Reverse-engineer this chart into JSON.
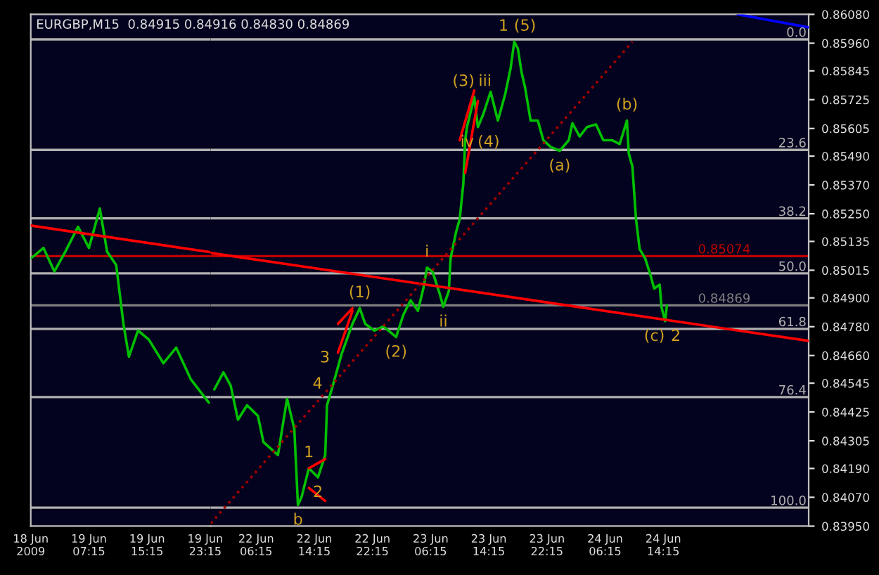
{
  "chart_data": [
    {
      "type": "line",
      "title": "EURGBP,M15  0.84915 0.84916 0.84830 0.84869",
      "xlim": [
        "2009-06-18T23:15",
        "2009-06-20T00:00"
      ],
      "ylim": [
        0.8395,
        0.8608
      ],
      "tick_labels": "x",
      "xticks": [
        {
          "value": "2009-06-18T23:15",
          "label": "18 Jun 2009"
        },
        {
          "value": "2009-06-19T07:15",
          "label": "19 Jun 07:15"
        },
        {
          "value": "2009-06-19T15:15",
          "label": "19 Jun 15:15"
        },
        {
          "value": "2009-06-19T23:15",
          "label": "19 Jun 23:15"
        }
      ],
      "grid": false,
      "legend": false,
      "series": [
        {
          "color": "#00c000",
          "x": [
            "2009-06-18T23:15",
            "2009-06-18T23:45",
            "2009-06-19T01:00",
            "2009-06-19T02:30",
            "2009-06-19T04:00",
            "2009-06-19T05:45",
            "2009-06-19T07:15",
            "2009-06-19T08:45",
            "2009-06-19T09:45",
            "2009-06-19T11:00",
            "2009-06-19T12:00",
            "2009-06-19T12:45",
            "2009-06-19T14:00",
            "2009-06-19T15:30",
            "2009-06-19T17:30",
            "2009-06-19T19:15",
            "2009-06-19T21:15",
            "2009-06-19T23:45"
          ],
          "values": [
            0.85065,
            0.85076,
            0.85108,
            0.8501,
            0.85092,
            0.85196,
            0.85108,
            0.85272,
            0.85092,
            0.85037,
            0.84792,
            0.84655,
            0.84764,
            0.84726,
            0.84628,
            0.84693,
            0.84562,
            0.84464
          ]
        },
        {
          "color": "#ff0000",
          "x": [
            "2009-06-18T23:15",
            "2009-06-20T00:00"
          ],
          "values": [
            0.85201,
            0.8509
          ]
        }
      ],
      "ref_lines": [
        {
          "axis": "y",
          "value": 0.85976,
          "color": "#b0b0b0"
        },
        {
          "axis": "y",
          "value": 0.85516,
          "color": "#b0b0b0"
        },
        {
          "axis": "y",
          "value": 0.85231,
          "color": "#b0b0b0"
        },
        {
          "axis": "y",
          "value": 0.85002,
          "color": "#b0b0b0"
        },
        {
          "axis": "y",
          "value": 0.84771,
          "color": "#b0b0b0"
        },
        {
          "axis": "y",
          "value": 0.84487,
          "color": "#b0b0b0"
        },
        {
          "axis": "y",
          "value": 0.84027,
          "color": "#b0b0b0"
        },
        {
          "axis": "y",
          "value": 0.85074,
          "color": "#c00000"
        },
        {
          "axis": "y",
          "value": 0.84869,
          "color": "#808080"
        }
      ]
    },
    {
      "type": "line",
      "xlim": [
        "2009-06-22T00:00",
        "2009-06-25T10:15"
      ],
      "ylim": [
        0.8395,
        0.8608
      ],
      "xticks": [
        {
          "value": "2009-06-22T06:15",
          "label": "22 Jun 06:15"
        },
        {
          "value": "2009-06-22T14:15",
          "label": "22 Jun 14:15"
        },
        {
          "value": "2009-06-22T22:15",
          "label": "22 Jun 22:15"
        },
        {
          "value": "2009-06-23T06:15",
          "label": "23 Jun 06:15"
        },
        {
          "value": "2009-06-23T14:15",
          "label": "23 Jun 14:15"
        },
        {
          "value": "2009-06-23T22:15",
          "label": "23 Jun 22:15"
        },
        {
          "value": "2009-06-24T06:15",
          "label": "24 Jun 06:15"
        },
        {
          "value": "2009-06-24T14:15",
          "label": "24 Jun 14:15"
        }
      ],
      "yticks": [
        {
          "value": 0.8608,
          "label": "0.86080"
        },
        {
          "value": 0.8596,
          "label": "0.85960"
        },
        {
          "value": 0.85845,
          "label": "0.85845"
        },
        {
          "value": 0.85725,
          "label": "0.85725"
        },
        {
          "value": 0.85605,
          "label": "0.85605"
        },
        {
          "value": 0.8549,
          "label": "0.85490"
        },
        {
          "value": 0.8537,
          "label": "0.85370"
        },
        {
          "value": 0.8525,
          "label": "0.85250"
        },
        {
          "value": 0.85135,
          "label": "0.85135"
        },
        {
          "value": 0.85015,
          "label": "0.85015"
        },
        {
          "value": 0.849,
          "label": "0.84900"
        },
        {
          "value": 0.8478,
          "label": "0.84780"
        },
        {
          "value": 0.8466,
          "label": "0.84660"
        },
        {
          "value": 0.84545,
          "label": "0.84545"
        },
        {
          "value": 0.84425,
          "label": "0.84425"
        },
        {
          "value": 0.84305,
          "label": "0.84305"
        },
        {
          "value": 0.8419,
          "label": "0.84190"
        },
        {
          "value": 0.8407,
          "label": "0.84070"
        },
        {
          "value": 0.8395,
          "label": "0.83950"
        }
      ],
      "grid": false,
      "legend": false,
      "series": [
        {
          "color": "#00c000",
          "x": [
            "2009-06-22T00:30",
            "2009-06-22T01:45",
            "2009-06-22T02:45",
            "2009-06-22T03:45",
            "2009-06-22T05:00",
            "2009-06-22T06:30",
            "2009-06-22T07:15",
            "2009-06-22T09:15",
            "2009-06-22T10:30",
            "2009-06-22T11:30",
            "2009-06-22T12:00",
            "2009-06-22T12:30",
            "2009-06-22T13:30",
            "2009-06-22T14:45",
            "2009-06-22T15:45",
            "2009-06-22T16:00",
            "2009-06-22T17:00",
            "2009-06-22T18:00",
            "2009-06-22T19:30",
            "2009-06-22T20:30",
            "2009-06-22T21:15",
            "2009-06-22T22:30",
            "2009-06-22T23:45",
            "2009-06-23T01:30",
            "2009-06-23T02:30",
            "2009-06-23T03:30",
            "2009-06-23T04:30",
            "2009-06-23T05:15",
            "2009-06-23T05:45",
            "2009-06-23T06:30",
            "2009-06-23T07:30",
            "2009-06-23T08:00",
            "2009-06-23T08:45",
            "2009-06-23T09:00",
            "2009-06-23T09:45",
            "2009-06-23T10:15",
            "2009-06-23T10:45",
            "2009-06-23T11:00",
            "2009-06-23T11:15",
            "2009-06-23T12:15",
            "2009-06-23T12:45",
            "2009-06-23T13:30",
            "2009-06-23T14:30",
            "2009-06-23T15:30",
            "2009-06-23T16:30",
            "2009-06-23T17:15",
            "2009-06-23T17:45",
            "2009-06-23T18:15",
            "2009-06-23T18:45",
            "2009-06-23T19:15",
            "2009-06-23T20:00",
            "2009-06-23T21:00",
            "2009-06-23T21:45",
            "2009-06-23T22:45",
            "2009-06-24T00:00",
            "2009-06-24T01:15",
            "2009-06-24T01:45",
            "2009-06-24T02:45",
            "2009-06-24T03:45",
            "2009-06-24T05:00",
            "2009-06-24T06:00",
            "2009-06-24T07:15",
            "2009-06-24T08:15",
            "2009-06-24T09:15",
            "2009-06-24T09:30",
            "2009-06-24T10:00",
            "2009-06-24T10:30",
            "2009-06-24T11:00",
            "2009-06-24T11:45",
            "2009-06-24T12:30",
            "2009-06-24T13:00",
            "2009-06-24T13:45",
            "2009-06-24T14:00",
            "2009-06-24T14:30",
            "2009-06-24T14:45"
          ],
          "values": [
            0.84519,
            0.8459,
            0.84535,
            0.84393,
            0.84453,
            0.84409,
            0.843,
            0.84246,
            0.8448,
            0.84355,
            0.84038,
            0.84071,
            0.84191,
            0.84153,
            0.84246,
            0.84453,
            0.84557,
            0.84666,
            0.84792,
            0.84857,
            0.84792,
            0.84764,
            0.84781,
            0.84737,
            0.8483,
            0.8489,
            0.84846,
            0.84939,
            0.85026,
            0.8501,
            0.84917,
            0.84863,
            0.84928,
            0.85065,
            0.85174,
            0.85228,
            0.85376,
            0.85556,
            0.85611,
            0.85736,
            0.85611,
            0.85665,
            0.85758,
            0.85638,
            0.85747,
            0.85856,
            0.85966,
            0.85938,
            0.8584,
            0.85774,
            0.85638,
            0.85638,
            0.85556,
            0.85529,
            0.85512,
            0.85556,
            0.85627,
            0.85572,
            0.85611,
            0.85622,
            0.85556,
            0.85556,
            0.8554,
            0.85638,
            0.85501,
            0.85447,
            0.85228,
            0.85103,
            0.85065,
            0.84994,
            0.84939,
            0.84955,
            0.84863,
            0.84803,
            0.84869
          ]
        },
        {
          "color": "#ff0000",
          "x": [
            "2009-06-22T00:00",
            "2009-06-25T10:15"
          ],
          "values": [
            0.85087,
            0.84721
          ]
        },
        {
          "color": "#a00000",
          "line_style": "dotted",
          "x": [
            "2009-06-22T00:00",
            "2009-06-24T10:00"
          ],
          "values": [
            0.83961,
            0.85966
          ]
        },
        {
          "color": "#0000ff",
          "x": [
            "2009-06-25T00:30",
            "2009-06-25T10:15"
          ],
          "values": [
            0.8608,
            0.86026
          ]
        },
        {
          "color": "#ff0000",
          "x": [
            "2009-06-22T13:30",
            "2009-06-22T15:45"
          ],
          "values": [
            0.84191,
            0.84229
          ]
        },
        {
          "color": "#ff0000",
          "x": [
            "2009-06-22T13:30",
            "2009-06-22T15:45"
          ],
          "values": [
            0.84109,
            0.84055
          ]
        },
        {
          "color": "#ff0000",
          "x": [
            "2009-06-22T17:30",
            "2009-06-22T19:30"
          ],
          "values": [
            0.84792,
            0.84857
          ]
        },
        {
          "color": "#ff0000",
          "x": [
            "2009-06-22T17:30",
            "2009-06-22T19:30"
          ],
          "values": [
            0.84672,
            0.84846
          ]
        },
        {
          "color": "#ff0000",
          "x": [
            "2009-06-23T10:15",
            "2009-06-23T12:15"
          ],
          "values": [
            0.85556,
            0.85763
          ]
        },
        {
          "color": "#ff0000",
          "x": [
            "2009-06-23T11:00",
            "2009-06-23T12:45"
          ],
          "values": [
            0.8542,
            0.8572
          ]
        }
      ],
      "ref_lines": [
        {
          "axis": "y",
          "value": 0.85976,
          "color": "#b0b0b0"
        },
        {
          "axis": "y",
          "value": 0.85516,
          "color": "#b0b0b0"
        },
        {
          "axis": "y",
          "value": 0.85231,
          "color": "#b0b0b0"
        },
        {
          "axis": "y",
          "value": 0.85002,
          "color": "#b0b0b0"
        },
        {
          "axis": "y",
          "value": 0.84771,
          "color": "#b0b0b0"
        },
        {
          "axis": "y",
          "value": 0.84487,
          "color": "#b0b0b0"
        },
        {
          "axis": "y",
          "value": 0.84027,
          "color": "#b0b0b0"
        },
        {
          "axis": "y",
          "value": 0.85074,
          "label": "0.85074",
          "color": "#c00000"
        },
        {
          "axis": "y",
          "value": 0.84869,
          "label": "0.84869",
          "color": "#808080"
        }
      ],
      "annotations": [
        {
          "text": "0.0",
          "x": "2009-06-25T10:15",
          "y": 0.85976
        },
        {
          "text": "23.6",
          "x": "2009-06-25T10:15",
          "y": 0.85516
        },
        {
          "text": "38.2",
          "x": "2009-06-25T10:15",
          "y": 0.85231
        },
        {
          "text": "50.0",
          "x": "2009-06-25T10:15",
          "y": 0.85002
        },
        {
          "text": "61.8",
          "x": "2009-06-25T10:15",
          "y": 0.84771
        },
        {
          "text": "76.4",
          "x": "2009-06-25T10:15",
          "y": 0.84487
        },
        {
          "text": "100.0",
          "x": "2009-06-25T10:15",
          "y": 0.84027
        },
        {
          "text": "1",
          "x": "2009-06-23T17:45",
          "y": 0.85966
        },
        {
          "text": "(5)",
          "x": "2009-06-23T17:45",
          "y": 0.85966
        },
        {
          "text": "(3)",
          "x": "2009-06-23T12:15",
          "y": 0.85736
        },
        {
          "text": "iii",
          "x": "2009-06-23T12:15",
          "y": 0.85736
        },
        {
          "text": "iv",
          "x": "2009-06-23T12:45",
          "y": 0.85611
        },
        {
          "text": "(4)",
          "x": "2009-06-23T12:45",
          "y": 0.85611
        },
        {
          "text": "(a)",
          "x": "2009-06-24T00:00",
          "y": 0.85512
        },
        {
          "text": "(b)",
          "x": "2009-06-24T09:15",
          "y": 0.85638
        },
        {
          "text": "i",
          "x": "2009-06-23T05:45",
          "y": 0.85026
        },
        {
          "text": "ii",
          "x": "2009-06-23T08:00",
          "y": 0.84863
        },
        {
          "text": "(1)",
          "x": "2009-06-22T20:30",
          "y": 0.84857
        },
        {
          "text": "3",
          "x": "2009-06-22T18:00",
          "y": 0.84666
        },
        {
          "text": "4",
          "x": "2009-06-22T17:00",
          "y": 0.84557
        },
        {
          "text": "(2)",
          "x": "2009-06-23T01:30",
          "y": 0.84737
        },
        {
          "text": "1",
          "x": "2009-06-22T13:30",
          "y": 0.84191
        },
        {
          "text": "2",
          "x": "2009-06-22T14:45",
          "y": 0.84153
        },
        {
          "text": "b",
          "x": "2009-06-22T12:00",
          "y": 0.84038
        },
        {
          "text": "(c)",
          "x": "2009-06-24T14:30",
          "y": 0.84803
        },
        {
          "text": "2",
          "x": "2009-06-24T14:30",
          "y": 0.84803
        }
      ]
    }
  ]
}
